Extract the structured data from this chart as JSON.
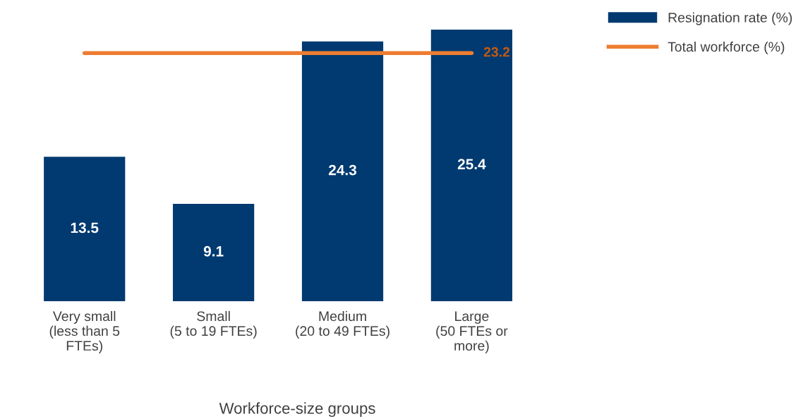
{
  "chart_data": {
    "type": "bar",
    "xlabel": "Workforce-size groups",
    "categories": [
      "Very small\n(less than 5\nFTEs)",
      "Small\n(5 to 19 FTEs)",
      "Medium\n(20 to 49 FTEs)",
      "Large\n(50 FTEs or\nmore)"
    ],
    "series": [
      {
        "name": "Resignation rate (%)",
        "color": "#003a70",
        "values": [
          13.5,
          9.1,
          24.3,
          25.4
        ],
        "data_labels": true
      },
      {
        "name": "Total workforce (%)",
        "type": "line",
        "color": "#ed7d31",
        "values": [
          23.2,
          23.2,
          23.2,
          23.2
        ],
        "value_labels": [
          null,
          null,
          null,
          "23.2"
        ]
      }
    ],
    "legend": "top right",
    "grid": false
  }
}
